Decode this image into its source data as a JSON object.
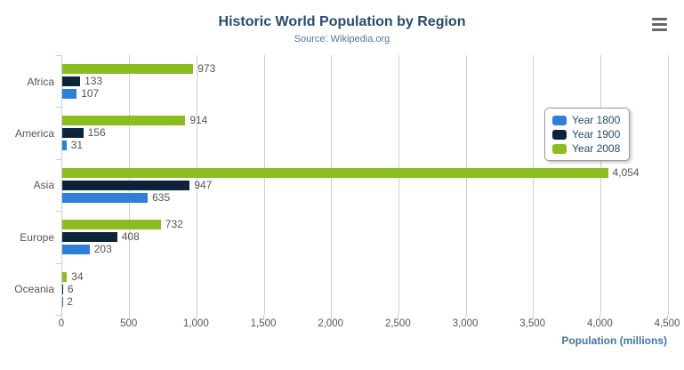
{
  "chart_data": {
    "type": "bar",
    "title": "Historic World Population by Region",
    "subtitle": "Source: Wikipedia.org",
    "categories": [
      "Africa",
      "America",
      "Asia",
      "Europe",
      "Oceania"
    ],
    "series": [
      {
        "name": "Year 1800",
        "color": "#2f7ed8",
        "values": [
          107,
          31,
          635,
          203,
          2
        ]
      },
      {
        "name": "Year 1900",
        "color": "#0d233a",
        "values": [
          133,
          156,
          947,
          408,
          6
        ]
      },
      {
        "name": "Year 2008",
        "color": "#8bbc21",
        "values": [
          973,
          914,
          4054,
          732,
          34
        ]
      }
    ],
    "bar_order_top_to_bottom": [
      "Year 2008",
      "Year 1900",
      "Year 1800"
    ],
    "data_labels": [
      "973",
      "133",
      "107",
      "914",
      "156",
      "31",
      "4,054",
      "947",
      "635",
      "732",
      "408",
      "203",
      "34",
      "6",
      "2"
    ],
    "xlabel": "Population (millions)",
    "xlim": [
      0,
      4500
    ],
    "tick_interval": 500,
    "x_tick_labels": [
      "0",
      "500",
      "1,000",
      "1,500",
      "2,000",
      "2,500",
      "3,000",
      "3,500",
      "4,000",
      "4,500"
    ],
    "grid": true,
    "legend_position": "floating-right-overlay"
  },
  "colors": {
    "title": "#274b6d",
    "subtitle": "#4d759e",
    "axis_title": "#4572a7",
    "labels": "#555555",
    "gridline": "#cfcfcf",
    "axis_line": "#c0d0e0",
    "legend_border": "#999999",
    "export_icon": "#666666"
  },
  "export_menu": {
    "icon": "hamburger-icon"
  }
}
